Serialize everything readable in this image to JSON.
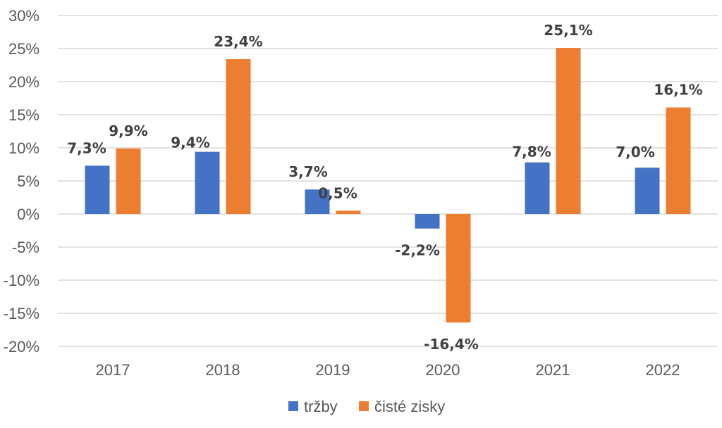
{
  "chart_data": {
    "type": "bar",
    "categories": [
      "2017",
      "2018",
      "2019",
      "2020",
      "2021",
      "2022"
    ],
    "series": [
      {
        "name": "tržby",
        "values": [
          7.3,
          9.4,
          3.7,
          -2.2,
          7.8,
          7.0
        ],
        "labels": [
          "7,3%",
          "9,4%",
          "3,7%",
          "-2,2%",
          "7,8%",
          "7,0%"
        ],
        "color": "#4472C4"
      },
      {
        "name": "čisté zisky",
        "values": [
          9.9,
          23.4,
          0.5,
          -16.4,
          25.1,
          16.1
        ],
        "labels": [
          "9,9%",
          "23,4%",
          "0,5%",
          "-16,4%",
          "25,1%",
          "16,1%"
        ],
        "color": "#ED7D31"
      }
    ],
    "ylim": [
      -20,
      30
    ],
    "yticks": [
      30,
      25,
      20,
      15,
      10,
      5,
      0,
      -5,
      -10,
      -15,
      -20
    ],
    "ytick_labels": [
      "30%",
      "25%",
      "20%",
      "15%",
      "10%",
      "5%",
      "0%",
      "-5%",
      "-10%",
      "-15%",
      "-20%"
    ],
    "grid": true,
    "legend_position": "bottom",
    "title": "",
    "xlabel": "",
    "ylabel": ""
  }
}
